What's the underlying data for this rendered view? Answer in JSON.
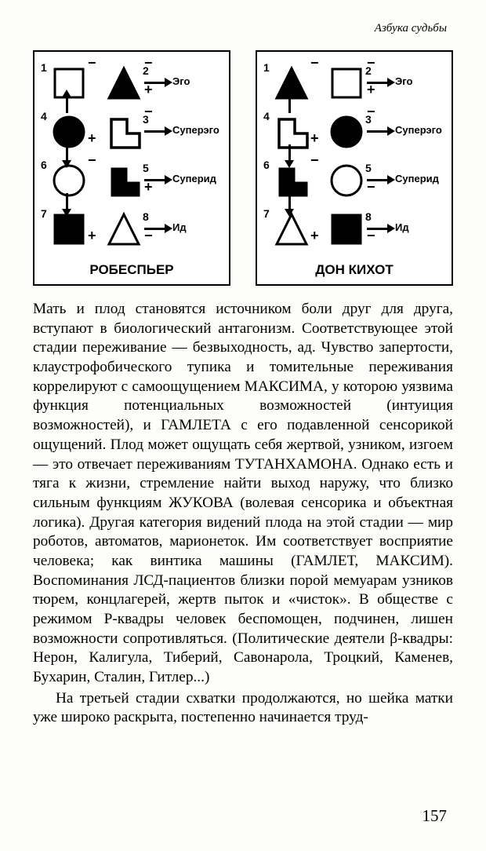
{
  "header": "Азбука судьбы",
  "page_number": "157",
  "diagrams": [
    {
      "title": "РОБЕСПЬЕР",
      "rows": [
        {
          "num_left": "1",
          "num_right": "2",
          "left_shape": {
            "kind": "square",
            "filled": false
          },
          "right_shape": {
            "kind": "triangle",
            "filled": true
          },
          "sign_left_top": "−",
          "sign_left_bot": null,
          "sign_right_top": "−",
          "sign_right_bot": "+",
          "label": "Эго",
          "arrow": "right",
          "vert_after": "up"
        },
        {
          "num_left": "4",
          "num_right": "3",
          "left_shape": {
            "kind": "circle",
            "filled": true
          },
          "right_shape": {
            "kind": "Lshape",
            "filled": false
          },
          "sign_left_top": null,
          "sign_left_bot": "+",
          "sign_right_top": "−",
          "sign_right_bot": null,
          "label": "Суперэго",
          "arrow": "right",
          "vert_after": "down"
        },
        {
          "num_left": "6",
          "num_right": "5",
          "left_shape": {
            "kind": "circle",
            "filled": false
          },
          "right_shape": {
            "kind": "Lsolid",
            "filled": true
          },
          "sign_left_top": "−",
          "sign_left_bot": null,
          "sign_right_top": null,
          "sign_right_bot": "+",
          "label": "Суперид",
          "arrow": "right",
          "vert_after": "down"
        },
        {
          "num_left": "7",
          "num_right": "8",
          "left_shape": {
            "kind": "square",
            "filled": true
          },
          "right_shape": {
            "kind": "triangle",
            "filled": false
          },
          "sign_left_top": null,
          "sign_left_bot": "+",
          "sign_right_top": null,
          "sign_right_bot": "−",
          "label": "Ид",
          "arrow": "right",
          "vert_after": null
        }
      ]
    },
    {
      "title": "ДОН КИХОТ",
      "rows": [
        {
          "num_left": "1",
          "num_right": "2",
          "left_shape": {
            "kind": "triangle",
            "filled": true
          },
          "right_shape": {
            "kind": "square",
            "filled": false
          },
          "sign_left_top": "−",
          "sign_left_bot": null,
          "sign_right_top": "−",
          "sign_right_bot": "+",
          "label": "Эго",
          "arrow": "right",
          "vert_after": "up"
        },
        {
          "num_left": "4",
          "num_right": "3",
          "left_shape": {
            "kind": "Lshape",
            "filled": false
          },
          "right_shape": {
            "kind": "circle",
            "filled": true
          },
          "sign_left_top": null,
          "sign_left_bot": "+",
          "sign_right_top": "−",
          "sign_right_bot": null,
          "label": "Суперэго",
          "arrow": "right",
          "vert_after": "down"
        },
        {
          "num_left": "6",
          "num_right": "5",
          "left_shape": {
            "kind": "Lsolid",
            "filled": true
          },
          "right_shape": {
            "kind": "circle",
            "filled": false
          },
          "sign_left_top": "−",
          "sign_left_bot": null,
          "sign_right_top": null,
          "sign_right_bot": "−",
          "label": "Суперид",
          "arrow": "right",
          "vert_after": "down"
        },
        {
          "num_left": "7",
          "num_right": "8",
          "left_shape": {
            "kind": "triangle",
            "filled": false
          },
          "right_shape": {
            "kind": "square",
            "filled": true
          },
          "sign_left_top": null,
          "sign_left_bot": "+",
          "sign_right_top": null,
          "sign_right_bot": "−",
          "label": "Ид",
          "arrow": "right",
          "vert_after": null
        }
      ]
    }
  ],
  "paragraph1": "Мать и плод становятся источником боли друг для друга, вступают в биологический антагонизм. Соответствующее этой стадии переживание — безвыходность, ад. Чувство запертости, клаустрофобического тупика и томительные переживания коррелируют с самоощущением МАКСИМА, у которою уязвима функция потенциальных возможностей (интуиция возможностей), и ГАМЛЕТА с его подавленной сенсорикой ощущений. Плод может ощущать себя жертвой, узником, изгоем — это отвечает переживаниям ТУТАНХАМОНА. Однако есть и тяга к жизни, стремление найти выход наружу, что близко сильным функциям ЖУКОВА (волевая сенсорика и объектная логика). Другая категория видений плода на этой стадии — мир роботов, автоматов, марионеток. Им соответствует восприятие человека; как винтика машины (ГАМЛЕТ, МАКСИМ). Воспоминания ЛСД-пациентов близки порой мемуарам узников тюрем, концлагерей, жертв пыток и «чисток». В обществе с режимом Р-квадры человек беспомощен, подчинен, лишен возможности сопротивляться. (Политические деятели β-квадры: Нерон, Калигула, Тиберий, Савонарола, Троцкий, Каменев, Бухарин, Сталин, Гитлер...)",
  "paragraph2": "На третьей стадии схватки продолжаются, но шейка матки уже широко раскрыта, постепенно начинается труд-"
}
